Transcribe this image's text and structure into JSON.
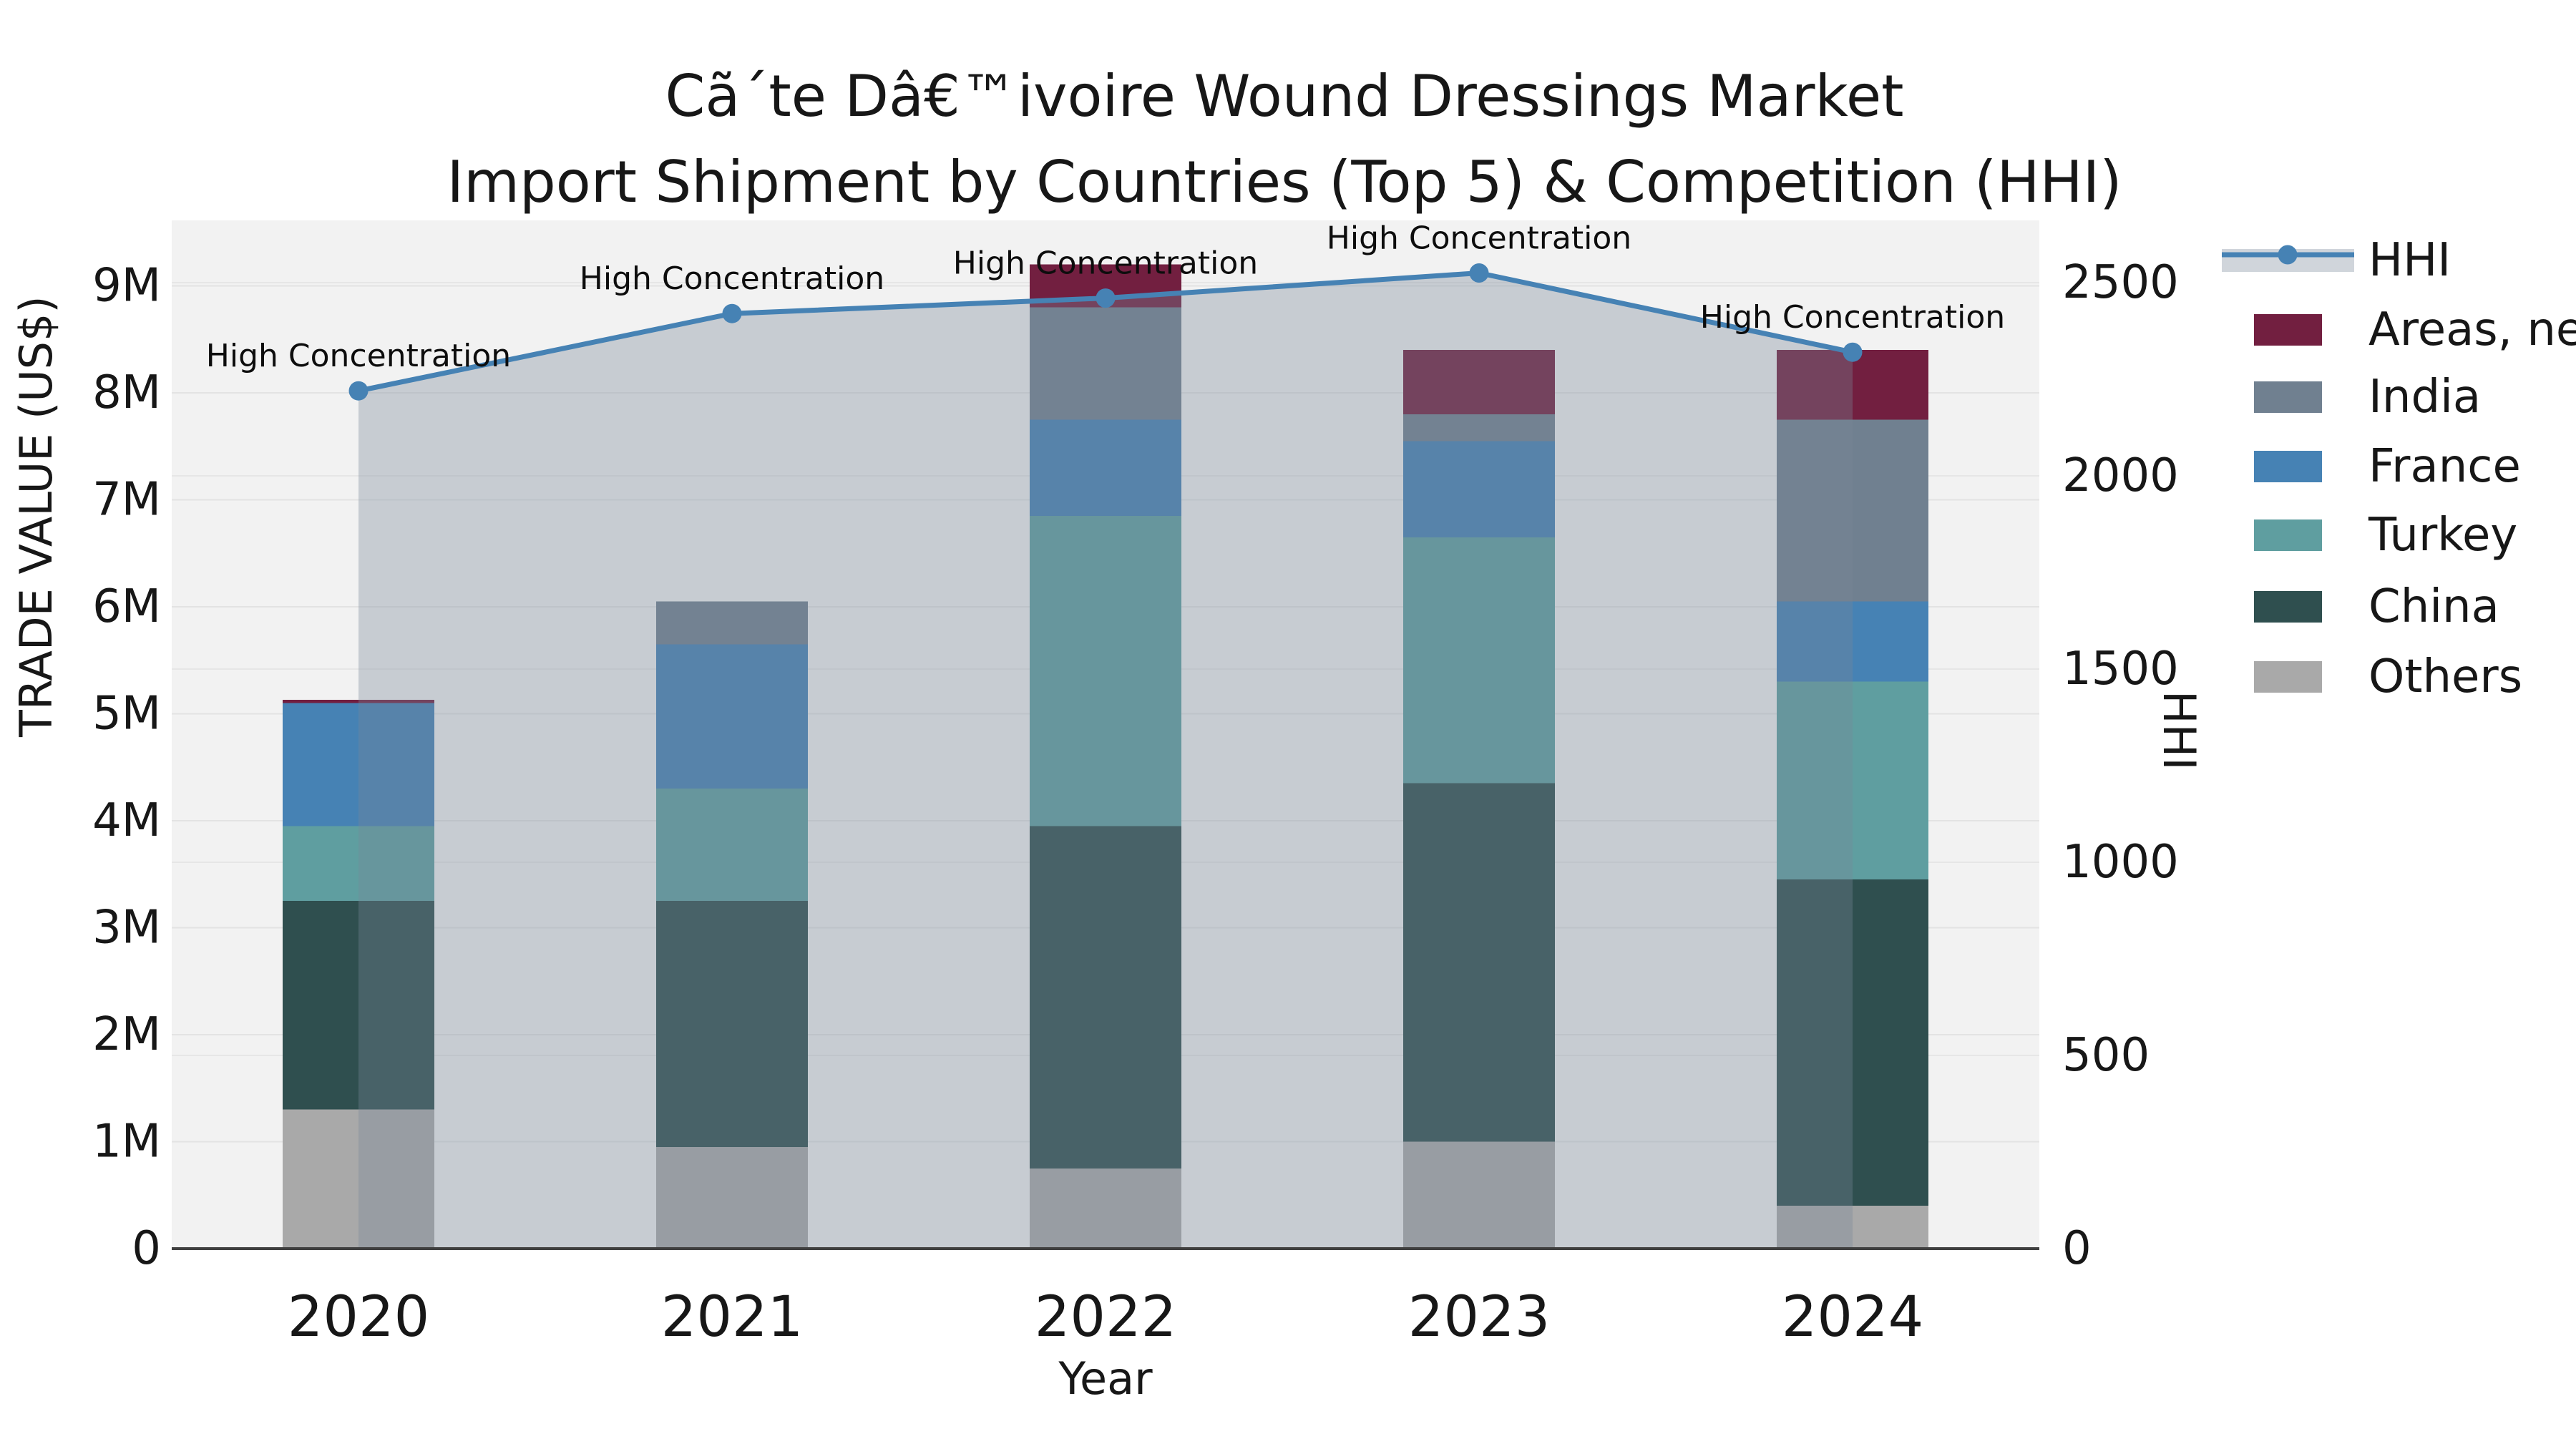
{
  "title": {
    "line1": "Cã´te Dâ€™ivoire Wound Dressings Market",
    "line2": "Import Shipment by Countries (Top 5) & Competition (HHI)"
  },
  "axes": {
    "left_label": "TRADE VALUE (US$)",
    "right_label": "HHI",
    "x_label": "Year",
    "left_ticks": [
      "0",
      "1M",
      "2M",
      "3M",
      "4M",
      "5M",
      "6M",
      "7M",
      "8M",
      "9M"
    ],
    "right_ticks": [
      "0",
      "500",
      "1000",
      "1500",
      "2000",
      "2500"
    ]
  },
  "annotation_text": "High Concentration",
  "legend": {
    "items": [
      {
        "label": "HHI",
        "type": "line",
        "color": "#4682b4"
      },
      {
        "label": "Areas, nes",
        "type": "patch",
        "color": "#721f40"
      },
      {
        "label": "India",
        "type": "patch",
        "color": "#708090"
      },
      {
        "label": "France",
        "type": "patch",
        "color": "#4682b4"
      },
      {
        "label": "Turkey",
        "type": "patch",
        "color": "#5f9ea0"
      },
      {
        "label": "China",
        "type": "patch",
        "color": "#2f4f4f"
      },
      {
        "label": "Others",
        "type": "patch",
        "color": "#a9a9a9"
      }
    ]
  },
  "chart_data": {
    "type": "bar",
    "subtype": "stacked-bars-with-line-overlay",
    "title": "Cã´te Dâ€™ivoire Wound Dressings Market — Import Shipment by Countries (Top 5) & Competition (HHI)",
    "xlabel": "Year",
    "ylabel_left": "TRADE VALUE (US$)",
    "ylabel_right": "HHI",
    "categories": [
      "2020",
      "2021",
      "2022",
      "2023",
      "2024"
    ],
    "bar_unit": "millions US$",
    "series": [
      {
        "name": "Others",
        "color": "#a9a9a9",
        "values": [
          1.3,
          0.95,
          0.75,
          1.0,
          0.4
        ]
      },
      {
        "name": "China",
        "color": "#2f4f4f",
        "values": [
          1.95,
          2.3,
          3.2,
          3.35,
          3.05
        ]
      },
      {
        "name": "Turkey",
        "color": "#5f9ea0",
        "values": [
          0.7,
          1.05,
          2.9,
          2.3,
          1.85
        ]
      },
      {
        "name": "France",
        "color": "#4682b4",
        "values": [
          1.15,
          1.35,
          0.9,
          0.9,
          0.75
        ]
      },
      {
        "name": "India",
        "color": "#708090",
        "values": [
          0.0,
          0.4,
          1.05,
          0.25,
          1.7
        ]
      },
      {
        "name": "Areas, nes",
        "color": "#721f40",
        "values": [
          0.03,
          0.0,
          0.4,
          0.6,
          0.65
        ]
      }
    ],
    "bar_totals": [
      5.13,
      6.05,
      9.2,
      8.4,
      8.4
    ],
    "line_series": {
      "name": "HHI",
      "values": [
        2220,
        2420,
        2460,
        2525,
        2320
      ],
      "color": "#4682b4",
      "area_fill": "rgba(119,136,153,0.35)",
      "point_annotations": [
        "High Concentration",
        "High Concentration",
        "High Concentration",
        "High Concentration",
        "High Concentration"
      ]
    },
    "ylim_left": [
      0,
      9.61
    ],
    "ylim_right": [
      0,
      2661
    ],
    "left_tick_values": [
      0,
      1,
      2,
      3,
      4,
      5,
      6,
      7,
      8,
      9
    ],
    "right_tick_values": [
      0,
      500,
      1000,
      1500,
      2000,
      2500
    ],
    "grid": true,
    "legend_position": "upper-right-outside",
    "plot_bg": "#f2f2f2"
  }
}
